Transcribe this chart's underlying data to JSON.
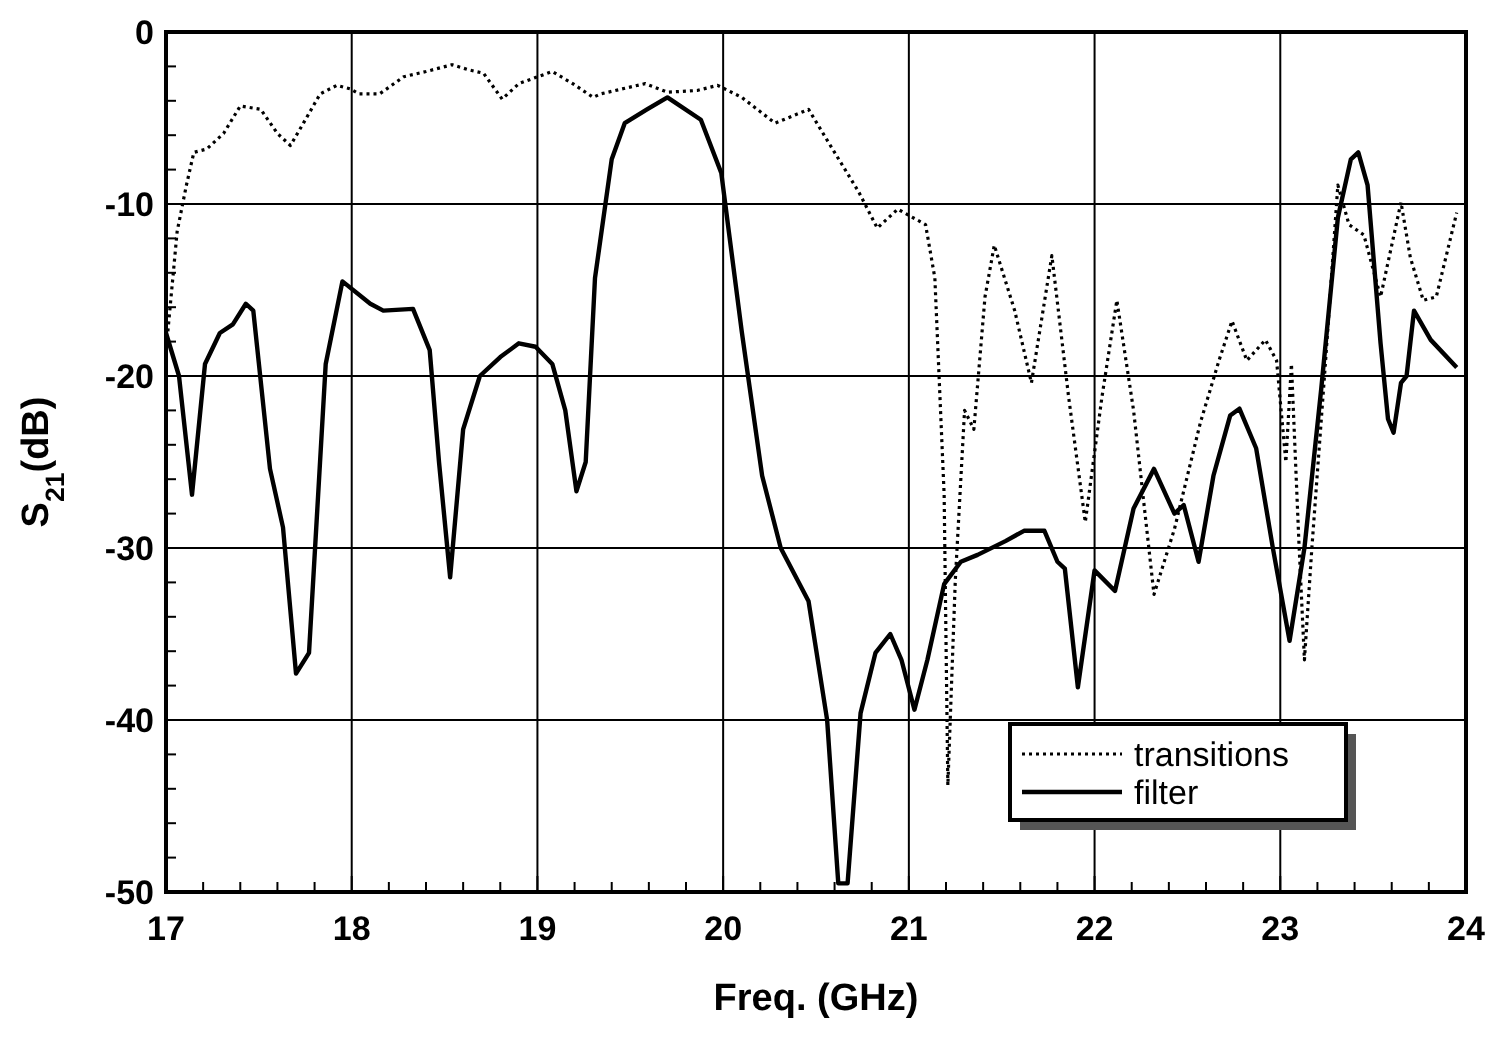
{
  "chart_data": {
    "type": "line",
    "xlabel": "Freq. (GHz)",
    "ylabel": "S$_{21}$(dB)",
    "xlim": [
      17,
      24
    ],
    "ylim": [
      -50,
      0
    ],
    "xticks": [
      17,
      {
        "value": 17.2,
        "label": null
      },
      {
        "value": 17.4,
        "label": null
      },
      {
        "value": 17.6,
        "label": null
      },
      {
        "value": 17.8,
        "label": null
      },
      18,
      {
        "value": 18.2,
        "label": null
      },
      {
        "value": 18.4,
        "label": null
      },
      {
        "value": 18.6,
        "label": null
      },
      {
        "value": 18.8,
        "label": null
      },
      19,
      {
        "value": 19.2,
        "label": null
      },
      {
        "value": 19.4,
        "label": null
      },
      {
        "value": 19.6,
        "label": null
      },
      {
        "value": 19.8,
        "label": null
      },
      20,
      {
        "value": 20.2,
        "label": null
      },
      {
        "value": 20.4,
        "label": null
      },
      {
        "value": 20.6,
        "label": null
      },
      {
        "value": 20.8,
        "label": null
      },
      21,
      {
        "value": 21.2,
        "label": null
      },
      {
        "value": 21.4,
        "label": null
      },
      {
        "value": 21.6,
        "label": null
      },
      {
        "value": 21.8,
        "label": null
      },
      22,
      {
        "value": 22.2,
        "label": null
      },
      {
        "value": 22.4,
        "label": null
      },
      {
        "value": 22.6,
        "label": null
      },
      {
        "value": 22.8,
        "label": null
      },
      23,
      {
        "value": 23.2,
        "label": null
      },
      {
        "value": 23.4,
        "label": null
      },
      {
        "value": 23.6,
        "label": null
      },
      {
        "value": 23.8,
        "label": null
      },
      24
    ],
    "yticks": [
      -50,
      {
        "value": -48,
        "label": null
      },
      {
        "value": -46,
        "label": null
      },
      {
        "value": -44,
        "label": null
      },
      {
        "value": -42,
        "label": null
      },
      -40,
      {
        "value": -38,
        "label": null
      },
      {
        "value": -36,
        "label": null
      },
      {
        "value": -34,
        "label": null
      },
      {
        "value": -32,
        "label": null
      },
      -30,
      {
        "value": -28,
        "label": null
      },
      {
        "value": -26,
        "label": null
      },
      {
        "value": -24,
        "label": null
      },
      {
        "value": -22,
        "label": null
      },
      -20,
      {
        "value": -18,
        "label": null
      },
      {
        "value": -16,
        "label": null
      },
      {
        "value": -14,
        "label": null
      },
      {
        "value": -12,
        "label": null
      },
      -10,
      {
        "value": -8,
        "label": null
      },
      {
        "value": -6,
        "label": null
      },
      {
        "value": -4,
        "label": null
      },
      {
        "value": -2,
        "label": null
      },
      0
    ],
    "grid": true,
    "legend": "bottom right",
    "series": [
      {
        "name": "transitions",
        "color": "#000000",
        "line_style": "dotted",
        "x": [
          17.01,
          17.06,
          17.11,
          17.15,
          17.22,
          17.31,
          17.4,
          17.51,
          17.6,
          17.67,
          17.74,
          17.83,
          17.92,
          17.99,
          18.04,
          18.15,
          18.28,
          18.4,
          18.54,
          18.63,
          18.71,
          18.81,
          18.9,
          19.08,
          19.19,
          19.3,
          19.34,
          19.58,
          19.7,
          19.86,
          19.97,
          20.1,
          20.28,
          20.46,
          20.6,
          20.73,
          20.83,
          20.94,
          21.09,
          21.14,
          21.19,
          21.21,
          21.25,
          21.3,
          21.35,
          21.41,
          21.46,
          21.57,
          21.66,
          21.77,
          21.86,
          21.95,
          22.04,
          22.12,
          22.21,
          22.32,
          22.43,
          22.57,
          22.67,
          22.74,
          22.82,
          22.92,
          22.98,
          23.03,
          23.06,
          23.1,
          23.13,
          23.17,
          23.24,
          23.31,
          23.37,
          23.45,
          23.54,
          23.65,
          23.7,
          23.77,
          23.84,
          23.95
        ],
        "values": [
          -17.4,
          -11.6,
          -8.9,
          -7,
          -6.8,
          -5.9,
          -4.3,
          -4.5,
          -5.9,
          -6.6,
          -5.3,
          -3.6,
          -3.1,
          -3.3,
          -3.6,
          -3.6,
          -2.6,
          -2.3,
          -1.9,
          -2.2,
          -2.4,
          -3.9,
          -3,
          -2.3,
          -3,
          -3.8,
          -3.6,
          -3,
          -3.5,
          -3.4,
          -3.1,
          -3.8,
          -5.3,
          -4.5,
          -7,
          -9.3,
          -11.4,
          -10.3,
          -11.2,
          -14.3,
          -26.9,
          -43.8,
          -31.9,
          -22,
          -23.1,
          -15.4,
          -12.4,
          -16.2,
          -20.4,
          -13,
          -21.2,
          -28.5,
          -21.2,
          -15.6,
          -22,
          -32.7,
          -28.9,
          -22.7,
          -19.1,
          -16.8,
          -19.1,
          -17.9,
          -19.1,
          -25,
          -19.3,
          -29.6,
          -36.5,
          -30,
          -19.7,
          -8.9,
          -11.2,
          -11.8,
          -15.4,
          -9.9,
          -13.1,
          -15.6,
          -15.4,
          -10.5
        ]
      },
      {
        "name": "filter",
        "color": "#000000",
        "line_style": "solid",
        "x": [
          17,
          17.07,
          17.14,
          17.21,
          17.29,
          17.36,
          17.43,
          17.47,
          17.56,
          17.63,
          17.7,
          17.77,
          17.86,
          17.95,
          18.1,
          18.17,
          18.33,
          18.42,
          18.47,
          18.53,
          18.6,
          18.69,
          18.8,
          18.9,
          18.99,
          19.08,
          19.15,
          19.21,
          19.26,
          19.31,
          19.4,
          19.47,
          19.59,
          19.7,
          19.88,
          19.99,
          20.1,
          20.21,
          20.31,
          20.46,
          20.56,
          20.62,
          20.67,
          20.74,
          20.82,
          20.9,
          20.96,
          21.03,
          21.1,
          21.19,
          21.28,
          21.37,
          21.52,
          21.62,
          21.73,
          21.8,
          21.84,
          21.91,
          22,
          22.11,
          22.21,
          22.32,
          22.43,
          22.48,
          22.56,
          22.64,
          22.73,
          22.78,
          22.87,
          22.96,
          23.05,
          23.13,
          23.22,
          23.31,
          23.38,
          23.42,
          23.47,
          23.54,
          23.58,
          23.61,
          23.65,
          23.68,
          23.72,
          23.81,
          23.95
        ],
        "values": [
          -17.5,
          -20,
          -26.9,
          -19.3,
          -17.5,
          -17,
          -15.8,
          -16.2,
          -25.4,
          -28.8,
          -37.3,
          -36.1,
          -19.3,
          -14.5,
          -15.8,
          -16.2,
          -16.1,
          -18.5,
          -25,
          -31.7,
          -23.1,
          -20,
          -18.9,
          -18.1,
          -18.3,
          -19.3,
          -22,
          -26.7,
          -25,
          -14.3,
          -7.4,
          -5.3,
          -4.5,
          -3.8,
          -5.1,
          -8.2,
          -17.4,
          -25.8,
          -30,
          -33.1,
          -40,
          -49.5,
          -49.5,
          -39.6,
          -36.1,
          -35,
          -36.5,
          -39.4,
          -36.5,
          -32.1,
          -30.8,
          -30.4,
          -29.6,
          -29,
          -29,
          -30.8,
          -31.2,
          -38.1,
          -31.3,
          -32.5,
          -27.7,
          -25.4,
          -28,
          -27.5,
          -30.8,
          -25.8,
          -22.3,
          -21.9,
          -24.2,
          -30,
          -35.4,
          -30,
          -20.8,
          -10.8,
          -7.4,
          -7,
          -8.9,
          -18.1,
          -22.5,
          -23.3,
          -20.4,
          -20,
          -16.2,
          -17.9,
          -19.5
        ]
      }
    ]
  }
}
